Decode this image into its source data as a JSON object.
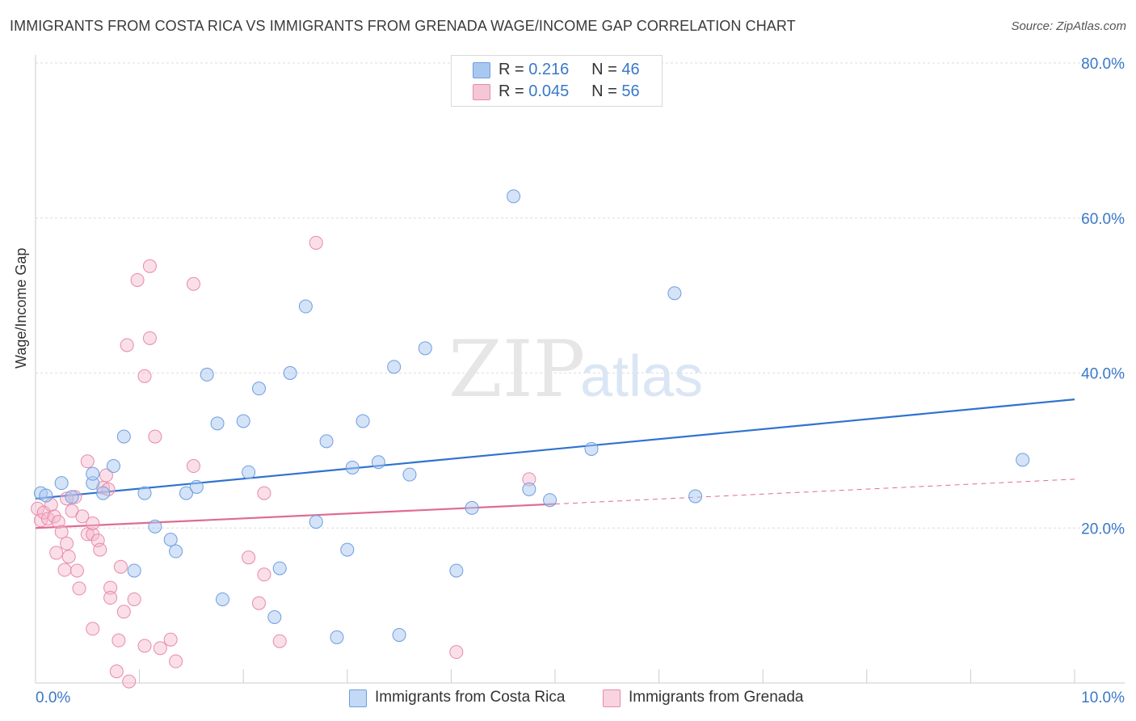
{
  "header": {
    "title": "IMMIGRANTS FROM COSTA RICA VS IMMIGRANTS FROM GRENADA WAGE/INCOME GAP CORRELATION CHART",
    "source": "Source: ZipAtlas.com"
  },
  "legend": {
    "rows": [
      {
        "r_label": "R =",
        "r_value": "0.216",
        "n_label": "N =",
        "n_value": "46"
      },
      {
        "r_label": "R =",
        "r_value": "0.045",
        "n_label": "N =",
        "n_value": "56"
      }
    ]
  },
  "bottom_legend": {
    "series1": "Immigrants from Costa Rica",
    "series2": "Immigrants from Grenada"
  },
  "colors": {
    "series1_fill": "#a9c8f0",
    "series1_stroke": "#6d9ee0",
    "series1_line": "#2f72cf",
    "series2_fill": "#f5b8cb",
    "series2_stroke": "#e88aa8",
    "series2_line": "#e06b92",
    "axis_text": "#3a78c9",
    "grid": "#dddddd"
  },
  "chart_data": {
    "type": "scatter",
    "title": "IMMIGRANTS FROM COSTA RICA VS IMMIGRANTS FROM GRENADA WAGE/INCOME GAP CORRELATION CHART",
    "xlabel": "",
    "ylabel": "Wage/Income Gap",
    "xlim": [
      0,
      10
    ],
    "ylim": [
      0,
      80
    ],
    "x_tick_labels": [
      "0.0%",
      "10.0%"
    ],
    "y_tick_labels": [
      "20.0%",
      "40.0%",
      "60.0%",
      "80.0%"
    ],
    "y_ticks": [
      20,
      40,
      60,
      80
    ],
    "watermark": "ZIPatlas",
    "series": [
      {
        "name": "Immigrants from Costa Rica",
        "r": 0.216,
        "n": 46,
        "trend": {
          "x0": 0,
          "y0": 23.8,
          "x1": 10,
          "y1": 36.6
        },
        "points": [
          [
            0.05,
            24.5
          ],
          [
            0.1,
            24.2
          ],
          [
            0.25,
            25.8
          ],
          [
            0.35,
            24.0
          ],
          [
            0.55,
            25.8
          ],
          [
            0.55,
            27.0
          ],
          [
            0.65,
            24.5
          ],
          [
            0.75,
            28.0
          ],
          [
            0.85,
            31.8
          ],
          [
            0.95,
            14.5
          ],
          [
            1.05,
            24.5
          ],
          [
            1.15,
            20.2
          ],
          [
            1.3,
            18.5
          ],
          [
            1.35,
            17.0
          ],
          [
            1.45,
            24.5
          ],
          [
            1.55,
            25.3
          ],
          [
            1.65,
            39.8
          ],
          [
            1.75,
            33.5
          ],
          [
            1.8,
            10.8
          ],
          [
            2.0,
            33.8
          ],
          [
            2.05,
            27.2
          ],
          [
            2.15,
            38.0
          ],
          [
            2.3,
            8.5
          ],
          [
            2.35,
            14.8
          ],
          [
            2.45,
            40.0
          ],
          [
            2.6,
            48.6
          ],
          [
            2.7,
            20.8
          ],
          [
            2.8,
            31.2
          ],
          [
            2.9,
            5.9
          ],
          [
            3.0,
            17.2
          ],
          [
            3.05,
            27.8
          ],
          [
            3.15,
            33.8
          ],
          [
            3.3,
            28.5
          ],
          [
            3.45,
            40.8
          ],
          [
            3.5,
            6.2
          ],
          [
            3.6,
            26.9
          ],
          [
            3.75,
            43.2
          ],
          [
            4.05,
            14.5
          ],
          [
            4.2,
            22.6
          ],
          [
            4.6,
            62.8
          ],
          [
            4.75,
            25.0
          ],
          [
            4.95,
            23.6
          ],
          [
            5.35,
            30.2
          ],
          [
            6.15,
            50.3
          ],
          [
            6.35,
            24.1
          ],
          [
            9.5,
            28.8
          ]
        ]
      },
      {
        "name": "Immigrants from Grenada",
        "r": 0.045,
        "n": 56,
        "trend": {
          "x0": 0,
          "y0": 20.0,
          "x1": 5,
          "y1": 23.1
        },
        "trend_ext": {
          "x0": 5,
          "y0": 23.1,
          "x1": 10,
          "y1": 26.3
        },
        "points": [
          [
            0.02,
            22.5
          ],
          [
            0.05,
            21.0
          ],
          [
            0.08,
            22.0
          ],
          [
            0.12,
            21.2
          ],
          [
            0.15,
            23.0
          ],
          [
            0.18,
            21.5
          ],
          [
            0.2,
            16.8
          ],
          [
            0.22,
            20.8
          ],
          [
            0.25,
            19.5
          ],
          [
            0.28,
            14.6
          ],
          [
            0.3,
            18.0
          ],
          [
            0.32,
            16.3
          ],
          [
            0.35,
            22.2
          ],
          [
            0.38,
            24.0
          ],
          [
            0.4,
            14.5
          ],
          [
            0.42,
            12.2
          ],
          [
            0.45,
            21.5
          ],
          [
            0.5,
            19.2
          ],
          [
            0.5,
            28.6
          ],
          [
            0.55,
            19.2
          ],
          [
            0.55,
            20.6
          ],
          [
            0.55,
            7.0
          ],
          [
            0.6,
            18.4
          ],
          [
            0.62,
            17.2
          ],
          [
            0.65,
            25.2
          ],
          [
            0.68,
            26.8
          ],
          [
            0.7,
            25.0
          ],
          [
            0.72,
            12.3
          ],
          [
            0.72,
            11.0
          ],
          [
            0.78,
            1.5
          ],
          [
            0.8,
            5.5
          ],
          [
            0.82,
            15.0
          ],
          [
            0.85,
            9.2
          ],
          [
            0.88,
            43.6
          ],
          [
            0.9,
            0.2
          ],
          [
            0.95,
            10.8
          ],
          [
            0.98,
            52.0
          ],
          [
            1.05,
            39.6
          ],
          [
            1.05,
            4.8
          ],
          [
            1.1,
            44.5
          ],
          [
            1.1,
            53.8
          ],
          [
            1.15,
            31.8
          ],
          [
            1.2,
            4.5
          ],
          [
            1.3,
            5.6
          ],
          [
            1.35,
            2.8
          ],
          [
            1.52,
            51.5
          ],
          [
            1.52,
            28.0
          ],
          [
            2.05,
            16.2
          ],
          [
            2.15,
            10.3
          ],
          [
            2.2,
            14.0
          ],
          [
            2.2,
            24.5
          ],
          [
            2.35,
            5.4
          ],
          [
            2.7,
            56.8
          ],
          [
            4.05,
            4.0
          ],
          [
            4.75,
            26.3
          ],
          [
            0.3,
            23.8
          ]
        ]
      }
    ]
  }
}
